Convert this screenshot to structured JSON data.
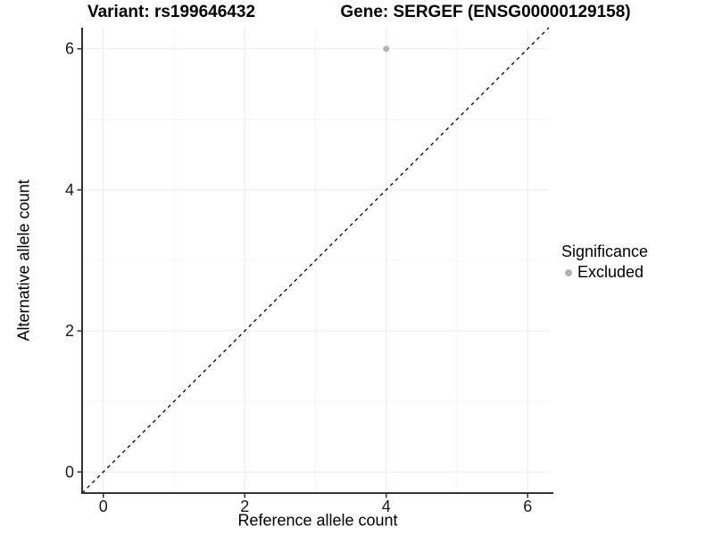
{
  "chart_data": {
    "type": "scatter",
    "title_left": "Variant: rs199646432",
    "title_right": "Gene: SERGEF (ENSG00000129158)",
    "xlabel": "Reference allele count",
    "ylabel": "Alternative allele count",
    "xlim": [
      -0.3,
      6.3
    ],
    "ylim": [
      -0.3,
      6.3
    ],
    "x_ticks": [
      0,
      2,
      4,
      6
    ],
    "y_ticks": [
      0,
      2,
      4,
      6
    ],
    "x_minor_ticks": [
      1,
      3,
      5
    ],
    "y_minor_ticks": [
      1,
      3,
      5
    ],
    "grid": true,
    "points": [
      {
        "x": 4,
        "y": 6,
        "series": "Excluded"
      }
    ],
    "reference_line": {
      "type": "identity",
      "style": "dashed",
      "from": [
        -0.3,
        -0.3
      ],
      "to": [
        6.3,
        6.3
      ]
    },
    "legend": {
      "title": "Significance",
      "position": "right",
      "items": [
        {
          "label": "Excluded",
          "color": "#b4b4b4"
        }
      ]
    }
  },
  "colors": {
    "background": "#ffffff",
    "point": "#b4b4b4",
    "axis_line": "#333333",
    "tick_mark": "#333333",
    "tick_label": "#1a1a1a",
    "grid_major": "#ebebeb",
    "grid_minor": "#f4f4f4",
    "reference_line": "#000000",
    "title_text": "#000000"
  }
}
